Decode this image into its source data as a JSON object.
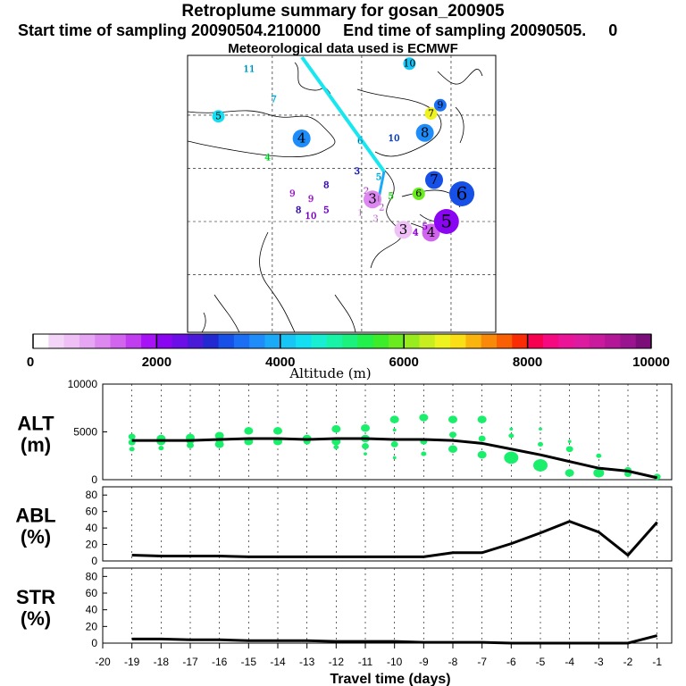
{
  "title": "Retroplume summary for gosan_200905",
  "subtitle": "Start time of sampling 20090504.210000     End time of sampling 20090505.     0",
  "met_note": "Meteorological data used is ECMWF",
  "colorbar": {
    "label": "Altitude (m)",
    "range": [
      0,
      10000
    ],
    "ticks": [
      "0",
      "2000",
      "4000",
      "6000",
      "8000",
      "10000"
    ],
    "colors": [
      "#ffffff",
      "#f3d6f7",
      "#eec0f6",
      "#e7a6f4",
      "#dd88f1",
      "#d165ee",
      "#c13ef0",
      "#a713f4",
      "#8a05f1",
      "#6c0ee8",
      "#4b1ad9",
      "#2329d0",
      "#1650e6",
      "#1a6ff5",
      "#1e8dfa",
      "#1aaaf8",
      "#18c6f6",
      "#14def2",
      "#17eed2",
      "#19f3a8",
      "#1af27d",
      "#22f04d",
      "#3ced2a",
      "#6aeb20",
      "#98ec1e",
      "#c8ee1f",
      "#eef21f",
      "#fadf17",
      "#f9b50e",
      "#f98a09",
      "#f96006",
      "#f92c05",
      "#f80050",
      "#f50a80",
      "#eb1499",
      "#dd1ba0",
      "#c9199c",
      "#b31797",
      "#9a1490",
      "#7c0e7a"
    ]
  },
  "map": {
    "labels": [
      {
        "text": "11",
        "lon": 0.2,
        "lat": 0.05,
        "color": "#18c6f6",
        "size": "small"
      },
      {
        "text": "7",
        "lon": 0.28,
        "lat": 0.16,
        "color": "#18c6f6",
        "size": "small"
      },
      {
        "text": "10",
        "lon": 0.72,
        "lat": 0.03,
        "color": "#18c6f6",
        "size": "med"
      },
      {
        "text": "9",
        "lon": 0.82,
        "lat": 0.18,
        "color": "#1a6ff5",
        "size": "med"
      },
      {
        "text": "7",
        "lon": 0.79,
        "lat": 0.21,
        "color": "#eef21f",
        "size": "med"
      },
      {
        "text": "5",
        "lon": 0.1,
        "lat": 0.22,
        "color": "#14def2",
        "size": "med"
      },
      {
        "text": "8",
        "lon": 0.77,
        "lat": 0.28,
        "color": "#1e8dfa",
        "size": "big"
      },
      {
        "text": "4",
        "lon": 0.37,
        "lat": 0.3,
        "color": "#1e8dfa",
        "size": "big"
      },
      {
        "text": "6",
        "lon": 0.56,
        "lat": 0.31,
        "color": "#18c6f6",
        "size": "small"
      },
      {
        "text": "10",
        "lon": 0.67,
        "lat": 0.3,
        "color": "#1650e6",
        "size": "small"
      },
      {
        "text": "4",
        "lon": 0.26,
        "lat": 0.37,
        "color": "#22f04d",
        "size": "small"
      },
      {
        "text": "3",
        "lon": 0.55,
        "lat": 0.42,
        "color": "#2329d0",
        "size": "small"
      },
      {
        "text": "5",
        "lon": 0.62,
        "lat": 0.44,
        "color": "#18c6f6",
        "size": "small"
      },
      {
        "text": "7",
        "lon": 0.8,
        "lat": 0.45,
        "color": "#1650e6",
        "size": "big"
      },
      {
        "text": "6",
        "lon": 0.89,
        "lat": 0.5,
        "color": "#1650e6",
        "size": "huge"
      },
      {
        "text": "8",
        "lon": 0.45,
        "lat": 0.47,
        "color": "#4b1ad9",
        "size": "small"
      },
      {
        "text": "9",
        "lon": 0.4,
        "lat": 0.52,
        "color": "#c13ef0",
        "size": "small"
      },
      {
        "text": "2",
        "lon": 0.58,
        "lat": 0.49,
        "color": "#dd88f1",
        "size": "small"
      },
      {
        "text": "3",
        "lon": 0.6,
        "lat": 0.52,
        "color": "#dd88f1",
        "size": "big"
      },
      {
        "text": "2",
        "lon": 0.63,
        "lat": 0.55,
        "color": "#e7a6f4",
        "size": "small"
      },
      {
        "text": "1",
        "lon": 0.62,
        "lat": 0.52,
        "color": "#dd88f1",
        "size": "small"
      },
      {
        "text": "5",
        "lon": 0.66,
        "lat": 0.51,
        "color": "#3ced2a",
        "size": "small"
      },
      {
        "text": "6",
        "lon": 0.75,
        "lat": 0.5,
        "color": "#6aeb20",
        "size": "med"
      },
      {
        "text": "9",
        "lon": 0.34,
        "lat": 0.5,
        "color": "#c13ef0",
        "size": "small"
      },
      {
        "text": "8",
        "lon": 0.36,
        "lat": 0.56,
        "color": "#4b1ad9",
        "size": "small"
      },
      {
        "text": "10",
        "lon": 0.4,
        "lat": 0.58,
        "color": "#a713f4",
        "size": "small"
      },
      {
        "text": "5",
        "lon": 0.45,
        "lat": 0.56,
        "color": "#8a05f1",
        "size": "small"
      },
      {
        "text": "3",
        "lon": 0.61,
        "lat": 0.59,
        "color": "#eec0f6",
        "size": "small"
      },
      {
        "text": "1",
        "lon": 0.56,
        "lat": 0.57,
        "color": "#f3d6f7",
        "size": "small"
      },
      {
        "text": "3",
        "lon": 0.7,
        "lat": 0.63,
        "color": "#eec0f6",
        "size": "big"
      },
      {
        "text": "4",
        "lon": 0.79,
        "lat": 0.64,
        "color": "#d165ee",
        "size": "big"
      },
      {
        "text": "4",
        "lon": 0.74,
        "lat": 0.64,
        "color": "#a713f4",
        "size": "small"
      },
      {
        "text": "5",
        "lon": 0.84,
        "lat": 0.6,
        "color": "#8a05f1",
        "size": "huge"
      },
      {
        "text": "5",
        "lon": 0.77,
        "lat": 0.62,
        "color": "#a713f4",
        "size": "small"
      }
    ]
  },
  "chart_data": [
    {
      "type": "scatter",
      "panel": "ALT",
      "ylabel": "ALT\n(m)",
      "ylabel_lines": [
        "ALT",
        "(m)"
      ],
      "xlim": [
        -20,
        -0.5
      ],
      "ylim": [
        0,
        10000
      ],
      "yticks": [
        "10000",
        "5000",
        "0"
      ],
      "line": {
        "x": [
          -19,
          -18,
          -17,
          -16,
          -15,
          -14,
          -13,
          -12,
          -11,
          -10,
          -9,
          -8,
          -7,
          -6,
          -5,
          -4,
          -3,
          -2,
          -1
        ],
        "y": [
          4100,
          4100,
          4100,
          4200,
          4300,
          4300,
          4200,
          4300,
          4300,
          4200,
          4200,
          4100,
          3800,
          3200,
          2600,
          1900,
          1200,
          900,
          200
        ]
      },
      "points": [
        {
          "x": -19,
          "y": 4500,
          "r": 4
        },
        {
          "x": -19,
          "y": 3900,
          "r": 4
        },
        {
          "x": -19,
          "y": 3200,
          "r": 3
        },
        {
          "x": -18,
          "y": 4300,
          "r": 5
        },
        {
          "x": -18,
          "y": 4000,
          "r": 5
        },
        {
          "x": -18,
          "y": 3300,
          "r": 3
        },
        {
          "x": -17,
          "y": 4400,
          "r": 5
        },
        {
          "x": -17,
          "y": 3600,
          "r": 4
        },
        {
          "x": -17,
          "y": 4000,
          "r": 4
        },
        {
          "x": -16,
          "y": 4600,
          "r": 5
        },
        {
          "x": -16,
          "y": 3700,
          "r": 5
        },
        {
          "x": -16,
          "y": 4000,
          "r": 4
        },
        {
          "x": -15,
          "y": 5100,
          "r": 5
        },
        {
          "x": -15,
          "y": 4000,
          "r": 5
        },
        {
          "x": -14,
          "y": 5100,
          "r": 5
        },
        {
          "x": -14,
          "y": 4000,
          "r": 5
        },
        {
          "x": -13,
          "y": 4300,
          "r": 5
        },
        {
          "x": -13,
          "y": 4000,
          "r": 4
        },
        {
          "x": -12,
          "y": 5300,
          "r": 5
        },
        {
          "x": -12,
          "y": 4000,
          "r": 5
        },
        {
          "x": -12,
          "y": 3400,
          "r": 3
        },
        {
          "x": -11,
          "y": 5400,
          "r": 5
        },
        {
          "x": -11,
          "y": 4300,
          "r": 5
        },
        {
          "x": -11,
          "y": 3500,
          "r": 4
        },
        {
          "x": -11,
          "y": 2700,
          "r": 2
        },
        {
          "x": -10,
          "y": 6300,
          "r": 5
        },
        {
          "x": -10,
          "y": 3700,
          "r": 4
        },
        {
          "x": -10,
          "y": 5200,
          "r": 2
        },
        {
          "x": -10,
          "y": 2300,
          "r": 2
        },
        {
          "x": -9,
          "y": 6500,
          "r": 5
        },
        {
          "x": -9,
          "y": 4000,
          "r": 4
        },
        {
          "x": -9,
          "y": 2700,
          "r": 3
        },
        {
          "x": -8,
          "y": 6300,
          "r": 5
        },
        {
          "x": -8,
          "y": 4700,
          "r": 4
        },
        {
          "x": -8,
          "y": 3200,
          "r": 5
        },
        {
          "x": -7,
          "y": 6300,
          "r": 5
        },
        {
          "x": -7,
          "y": 4300,
          "r": 4
        },
        {
          "x": -7,
          "y": 2600,
          "r": 5
        },
        {
          "x": -6,
          "y": 4600,
          "r": 3
        },
        {
          "x": -6,
          "y": 5300,
          "r": 2
        },
        {
          "x": -6,
          "y": 2300,
          "r": 8
        },
        {
          "x": -5,
          "y": 5300,
          "r": 2
        },
        {
          "x": -5,
          "y": 3700,
          "r": 3
        },
        {
          "x": -5,
          "y": 1500,
          "r": 8
        },
        {
          "x": -4,
          "y": 4000,
          "r": 2
        },
        {
          "x": -4,
          "y": 3200,
          "r": 4
        },
        {
          "x": -4,
          "y": 700,
          "r": 5
        },
        {
          "x": -3,
          "y": 2500,
          "r": 3
        },
        {
          "x": -3,
          "y": 700,
          "r": 6
        },
        {
          "x": -2,
          "y": 1000,
          "r": 4
        },
        {
          "x": -2,
          "y": 600,
          "r": 4
        },
        {
          "x": -1,
          "y": 300,
          "r": 4
        }
      ]
    },
    {
      "type": "line",
      "panel": "ABL",
      "ylabel_lines": [
        "ABL",
        "(%)"
      ],
      "xlim": [
        -20,
        -0.5
      ],
      "ylim": [
        0,
        90
      ],
      "yticks": [
        "80",
        "60",
        "40",
        "20",
        "0"
      ],
      "x": [
        -19,
        -18,
        -17,
        -16,
        -15,
        -14,
        -13,
        -12,
        -11,
        -10,
        -9,
        -8,
        -7,
        -6,
        -5,
        -4,
        -3,
        -2,
        -1
      ],
      "y": [
        7,
        6,
        6,
        6,
        5,
        5,
        5,
        5,
        5,
        5,
        5,
        10,
        10,
        21,
        34,
        48,
        35,
        7,
        47
      ]
    },
    {
      "type": "line",
      "panel": "STR",
      "ylabel_lines": [
        "STR",
        "(%)"
      ],
      "xlim": [
        -20,
        -0.5
      ],
      "ylim": [
        0,
        90
      ],
      "yticks": [
        "80",
        "60",
        "40",
        "20",
        "0"
      ],
      "x": [
        -19,
        -18,
        -17,
        -16,
        -15,
        -14,
        -13,
        -12,
        -11,
        -10,
        -9,
        -8,
        -7,
        -6,
        -5,
        -4,
        -3,
        -2,
        -1
      ],
      "y": [
        5,
        5,
        4,
        4,
        3,
        3,
        3,
        2,
        2,
        2,
        1,
        1,
        1,
        0,
        0,
        0,
        0,
        0,
        9
      ]
    }
  ],
  "xaxis": {
    "label": "Travel time (days)",
    "ticks": [
      "-20",
      "-19",
      "-18",
      "-17",
      "-16",
      "-15",
      "-14",
      "-13",
      "-12",
      "-11",
      "-10",
      "-9",
      "-8",
      "-7",
      "-6",
      "-5",
      "-4",
      "-3",
      "-2",
      "-1"
    ]
  }
}
